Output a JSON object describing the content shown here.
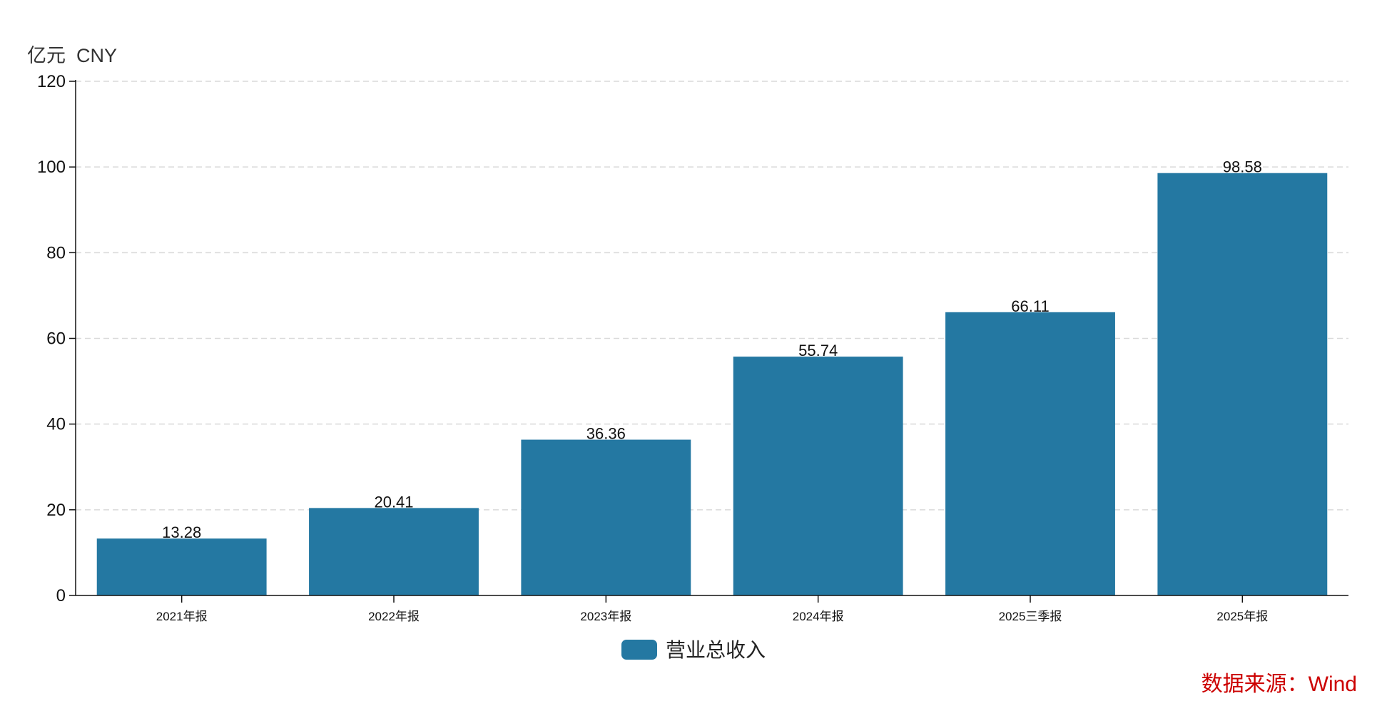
{
  "unit_label": "亿元  CNY",
  "source_label": "数据来源：Wind",
  "colors": {
    "bar": "#2478a2",
    "source": "#cc0000",
    "grid": "#d9d9d9",
    "axis": "#111111"
  },
  "chart_data": {
    "type": "bar",
    "categories": [
      "2021年报",
      "2022年报",
      "2023年报",
      "2024年报",
      "2025三季报",
      "2025年报"
    ],
    "series": [
      {
        "name": "营业总收入",
        "values": [
          13.28,
          20.41,
          36.36,
          55.74,
          66.11,
          98.58
        ]
      }
    ],
    "ylim": [
      0,
      120
    ],
    "yticks": [
      0,
      20,
      40,
      60,
      80,
      100,
      120
    ],
    "grid": true,
    "legend_position": "bottom-center"
  }
}
